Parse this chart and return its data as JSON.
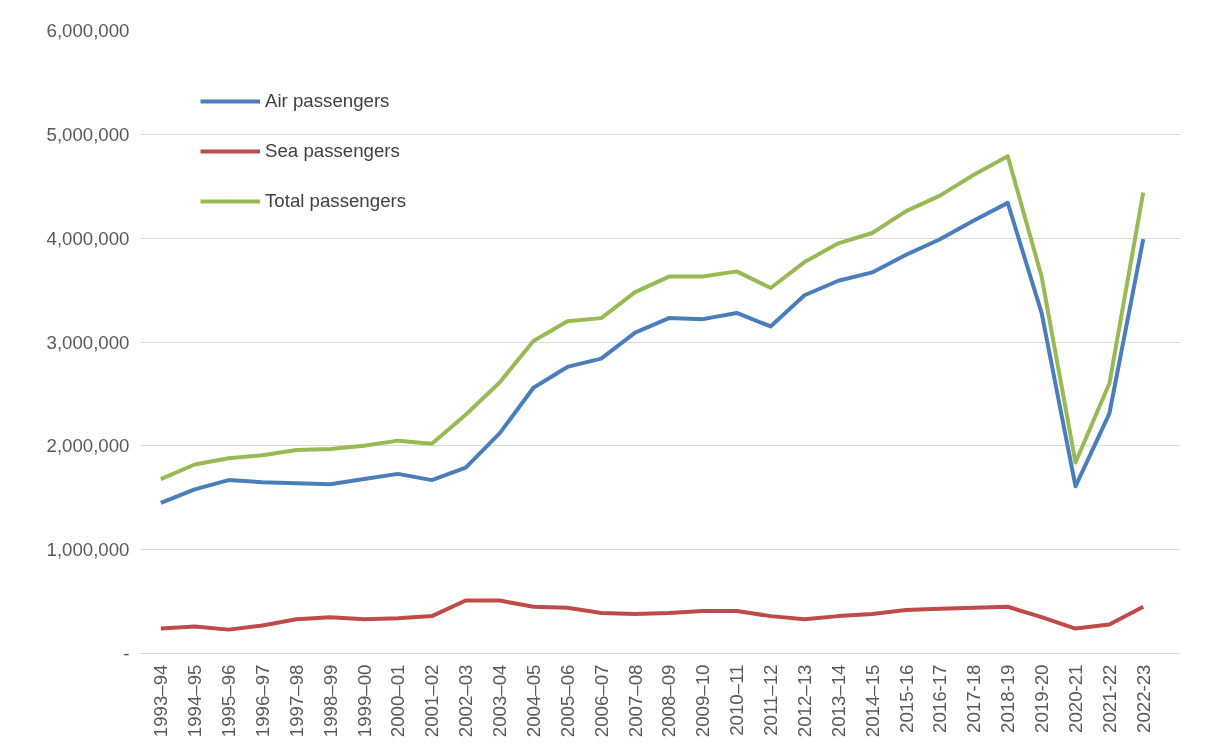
{
  "chart_data": {
    "type": "line",
    "categories": [
      "1993–94",
      "1994–95",
      "1995–96",
      "1996–97",
      "1997–98",
      "1998–99",
      "1999–00",
      "2000–01",
      "2001–02",
      "2002–03",
      "2003–04",
      "2004–05",
      "2005–06",
      "2006–07",
      "2007–08",
      "2008–09",
      "2009–10",
      "2010–11",
      "2011–12",
      "2012–13",
      "2013–14",
      "2014–15",
      "2015-16",
      "2016-17",
      "2017-18",
      "2018-19",
      "2019-20",
      "2020-21",
      "2021-22",
      "2022-23"
    ],
    "series": [
      {
        "name": "Air passengers",
        "color": "#4a7ebb",
        "values": [
          1450000,
          1580000,
          1670000,
          1650000,
          1640000,
          1630000,
          1680000,
          1730000,
          1670000,
          1790000,
          2120000,
          2560000,
          2760000,
          2840000,
          3090000,
          3230000,
          3220000,
          3280000,
          3150000,
          3450000,
          3590000,
          3670000,
          3840000,
          3990000,
          4170000,
          4340000,
          3280000,
          1610000,
          2310000,
          3990000
        ]
      },
      {
        "name": "Sea passengers",
        "color": "#be4b48",
        "values": [
          240000,
          260000,
          230000,
          270000,
          330000,
          350000,
          330000,
          340000,
          360000,
          510000,
          510000,
          450000,
          440000,
          390000,
          380000,
          390000,
          410000,
          410000,
          360000,
          330000,
          360000,
          380000,
          420000,
          430000,
          440000,
          450000,
          350000,
          240000,
          280000,
          450000
        ]
      },
      {
        "name": "Total passengers",
        "color": "#98b954",
        "values": [
          1680000,
          1820000,
          1880000,
          1910000,
          1960000,
          1970000,
          2000000,
          2050000,
          2020000,
          2300000,
          2610000,
          3010000,
          3200000,
          3230000,
          3480000,
          3630000,
          3630000,
          3680000,
          3520000,
          3770000,
          3950000,
          4050000,
          4260000,
          4410000,
          4610000,
          4790000,
          3630000,
          1840000,
          2600000,
          4440000
        ]
      }
    ],
    "ylim": [
      0,
      6000000
    ],
    "yticks": [
      {
        "value": 0,
        "label": "-"
      },
      {
        "value": 1000000,
        "label": "1,000,000"
      },
      {
        "value": 2000000,
        "label": "2,000,000"
      },
      {
        "value": 3000000,
        "label": "3,000,000"
      },
      {
        "value": 4000000,
        "label": "4,000,000"
      },
      {
        "value": 5000000,
        "label": "5,000,000"
      },
      {
        "value": 6000000,
        "label": "6,000,000"
      }
    ],
    "grid": "y",
    "legend": "top left",
    "marker": "none",
    "line_style": "solid"
  }
}
